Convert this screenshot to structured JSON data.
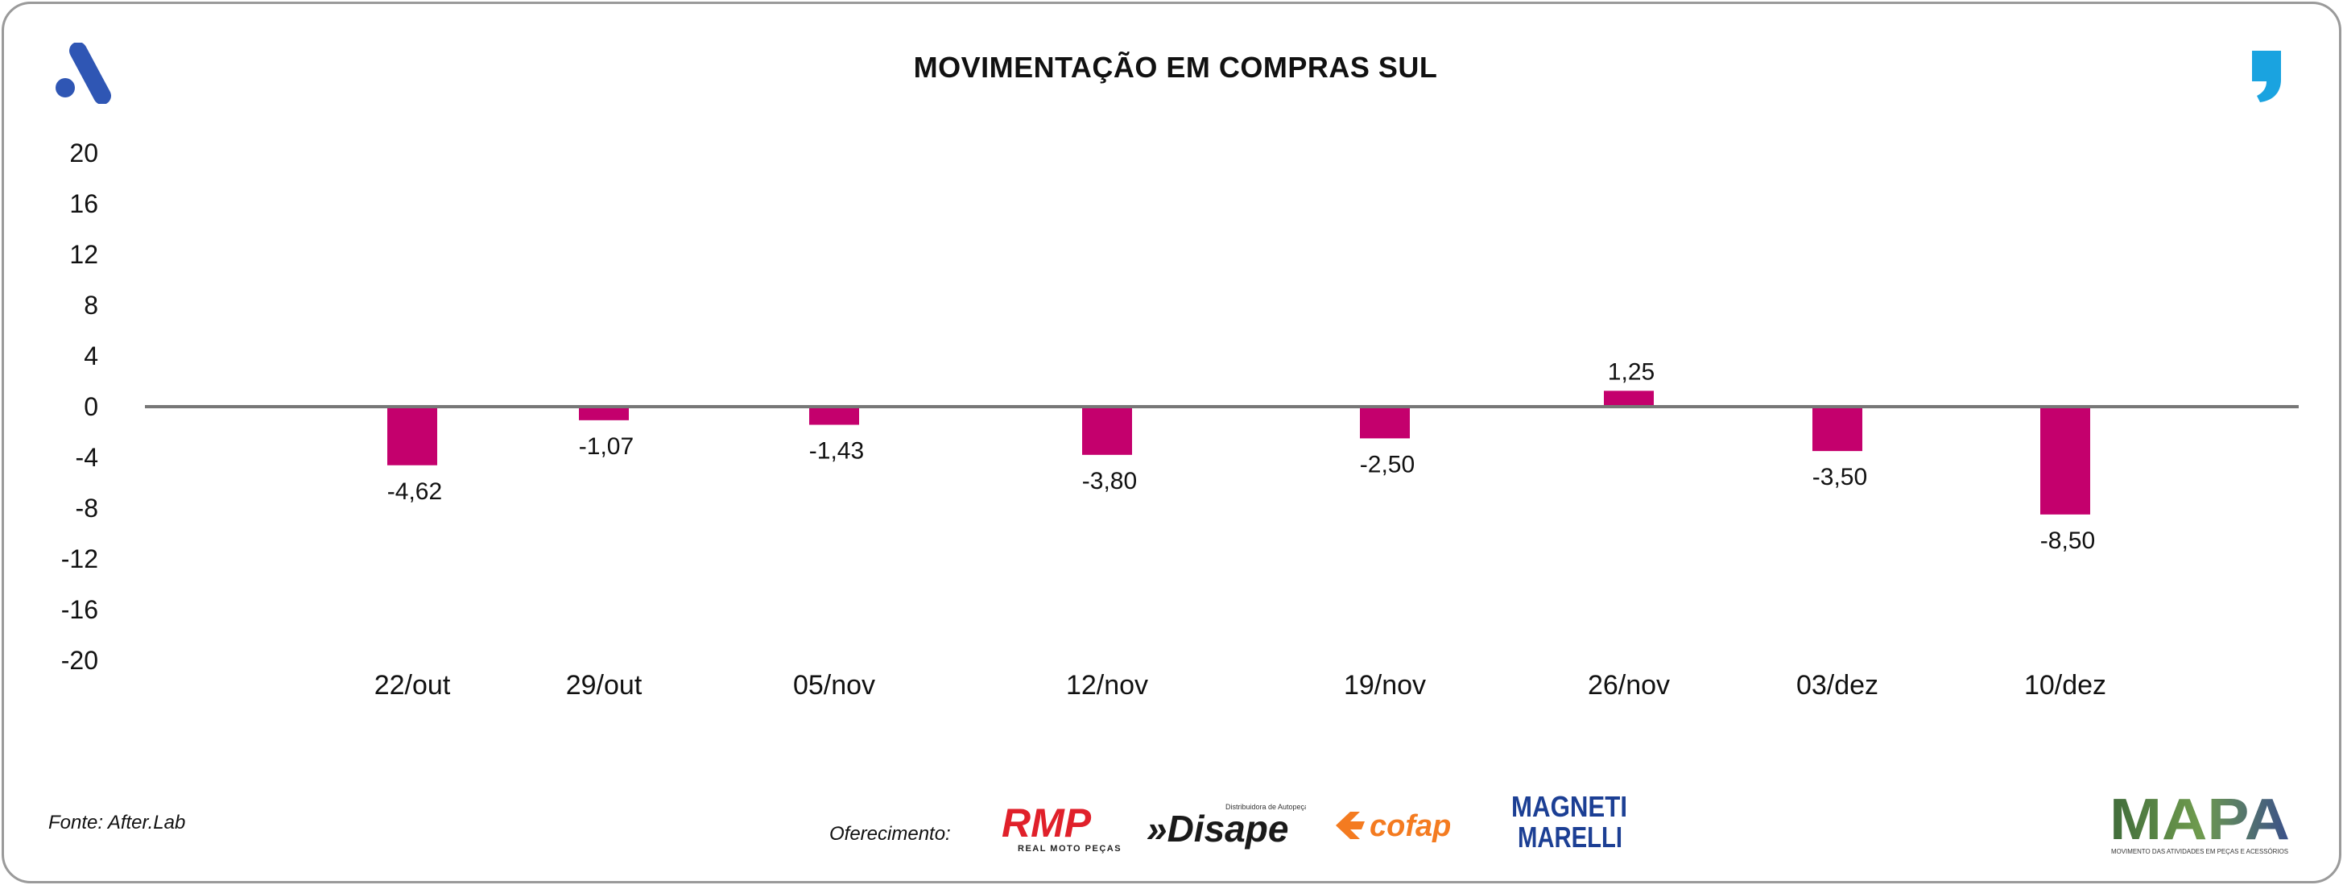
{
  "header": {
    "title": "MOVIMENTAÇÃO EM COMPRAS SUL"
  },
  "chart_data": {
    "type": "bar",
    "title": "MOVIMENTAÇÃO EM COMPRAS SUL",
    "xlabel": "",
    "ylabel": "",
    "categories": [
      "22/out",
      "29/out",
      "05/nov",
      "12/nov",
      "19/nov",
      "26/nov",
      "03/dez",
      "10/dez"
    ],
    "values": [
      -4.62,
      -1.07,
      -1.43,
      -3.8,
      -2.5,
      1.25,
      -3.5,
      -8.5
    ],
    "value_labels": [
      "-4,62",
      "-1,07",
      "-1,43",
      "-3,80",
      "-2,50",
      "1,25",
      "-3,50",
      "-8,50"
    ],
    "ylim": [
      -20,
      20
    ],
    "yticks": [
      20,
      16,
      12,
      8,
      4,
      0,
      -4,
      -8,
      -12,
      -16,
      -20
    ],
    "ytick_labels": [
      "20",
      "16",
      "12",
      "8",
      "4",
      "0",
      "-4",
      "-8",
      "-12",
      "-16",
      "-20"
    ],
    "grid": false,
    "legend": "none",
    "bar_color": "#c4006d",
    "zero_line_color": "#777777"
  },
  "footer": {
    "source": "Fonte: After.Lab",
    "sponsor_label": "Oferecimento:",
    "sponsors": {
      "rmp": {
        "name": "RMP",
        "tagline": "REAL MOTO PEÇAS"
      },
      "disape": {
        "name": "»Disape",
        "tagline": "Distribuidora de Autopeças"
      },
      "cofap": {
        "name": "cofap"
      },
      "magneti": {
        "line1": "MAGNETI",
        "line2": "MARELLI"
      },
      "mapa": {
        "name": "MAPA",
        "tagline": "MOVIMENTO DAS ATIVIDADES EM PEÇAS E ACESSÓRIOS"
      }
    }
  },
  "colors": {
    "brand_blue": "#2f56b4",
    "quote_blue": "#1aa3e0",
    "rmp_red": "#e0202a",
    "cofap_orange": "#f47b20",
    "magneti_blue": "#1c3f94",
    "mapa_green": "#4f7a4a"
  }
}
